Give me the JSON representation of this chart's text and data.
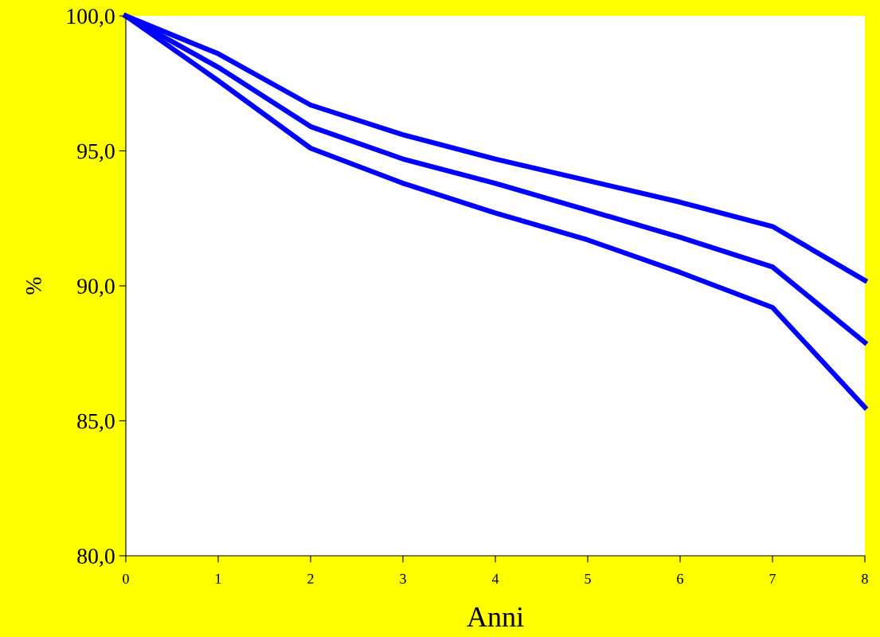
{
  "chart_data": {
    "type": "line",
    "xlabel": "Anni",
    "ylabel": "%",
    "x": [
      0,
      1,
      2,
      3,
      4,
      5,
      6,
      7,
      8
    ],
    "series": [
      {
        "color": "#0000ff",
        "values": [
          100.0,
          98.6,
          96.7,
          95.6,
          94.7,
          93.9,
          93.1,
          92.2,
          90.2
        ]
      },
      {
        "color": "#0000ff",
        "values": [
          100.0,
          98.1,
          95.9,
          94.7,
          93.8,
          92.8,
          91.8,
          90.7,
          87.9
        ]
      },
      {
        "color": "#0000ff",
        "values": [
          100.0,
          97.6,
          95.1,
          93.8,
          92.7,
          91.7,
          90.5,
          89.2,
          85.5
        ]
      }
    ],
    "xlim": [
      0,
      8
    ],
    "xticks": [
      0,
      1,
      2,
      3,
      4,
      5,
      6,
      7,
      8
    ],
    "ylim": [
      80,
      100
    ],
    "yticks": [
      {
        "value": 80,
        "label": "80,0"
      },
      {
        "value": 85,
        "label": "85,0"
      },
      {
        "value": 90,
        "label": "90,0"
      },
      {
        "value": 95,
        "label": "95,0"
      },
      {
        "value": 100,
        "label": "100,0"
      }
    ],
    "grid": false,
    "legend": false,
    "marker": "none",
    "line_style": "solid"
  }
}
